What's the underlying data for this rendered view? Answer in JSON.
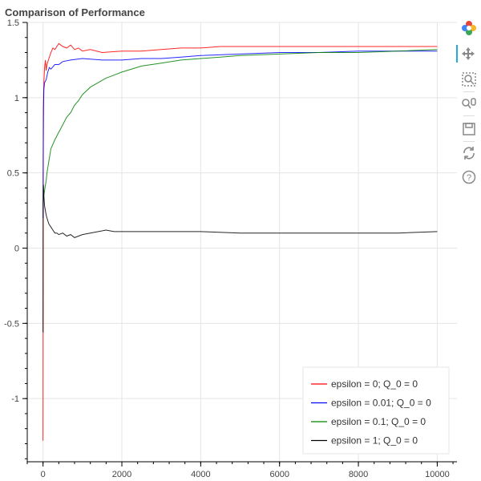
{
  "title": "Comparison of Performance",
  "toolbar": {
    "tools": [
      {
        "name": "bokeh-logo-icon",
        "interactable": false
      },
      {
        "name": "pan-icon",
        "interactable": true,
        "active": true
      },
      {
        "name": "box-zoom-icon",
        "interactable": true
      },
      {
        "name": "wheel-zoom-icon",
        "interactable": true
      },
      {
        "name": "save-icon",
        "interactable": true
      },
      {
        "name": "reset-icon",
        "interactable": true
      },
      {
        "name": "help-icon",
        "interactable": true
      }
    ]
  },
  "chart_data": {
    "type": "line",
    "title": "Comparison of Performance",
    "xlabel": "",
    "ylabel": "",
    "xlim": [
      -400,
      10500
    ],
    "ylim": [
      -1.42,
      1.5
    ],
    "x_ticks": [
      0,
      2000,
      4000,
      6000,
      8000,
      10000
    ],
    "y_ticks": [
      -1,
      -0.5,
      0,
      0.5,
      1,
      1.5
    ],
    "y_tick_labels": [
      "-1",
      "-0.5",
      "0",
      "0.5",
      "1",
      "1.5"
    ],
    "grid": true,
    "legend_position": "bottom-right",
    "series": [
      {
        "name": "epsilon = 0; Q_0 = 0",
        "color": "#ff0000",
        "points": [
          [
            1,
            -1.28
          ],
          [
            3,
            -0.6
          ],
          [
            5,
            0.4
          ],
          [
            10,
            0.95
          ],
          [
            20,
            1.1
          ],
          [
            40,
            1.2
          ],
          [
            60,
            1.25
          ],
          [
            80,
            1.18
          ],
          [
            100,
            1.22
          ],
          [
            150,
            1.26
          ],
          [
            200,
            1.3
          ],
          [
            250,
            1.33
          ],
          [
            300,
            1.32
          ],
          [
            350,
            1.34
          ],
          [
            400,
            1.36
          ],
          [
            450,
            1.35
          ],
          [
            500,
            1.34
          ],
          [
            600,
            1.33
          ],
          [
            700,
            1.35
          ],
          [
            800,
            1.32
          ],
          [
            900,
            1.33
          ],
          [
            1000,
            1.31
          ],
          [
            1200,
            1.32
          ],
          [
            1500,
            1.3
          ],
          [
            2000,
            1.31
          ],
          [
            2500,
            1.31
          ],
          [
            3000,
            1.32
          ],
          [
            3500,
            1.33
          ],
          [
            4000,
            1.33
          ],
          [
            4500,
            1.34
          ],
          [
            5000,
            1.34
          ],
          [
            6000,
            1.34
          ],
          [
            7000,
            1.34
          ],
          [
            8000,
            1.34
          ],
          [
            9000,
            1.34
          ],
          [
            10000,
            1.34
          ]
        ]
      },
      {
        "name": "epsilon = 0.01; Q_0 = 0",
        "color": "#0000ff",
        "points": [
          [
            1,
            0.2
          ],
          [
            5,
            0.6
          ],
          [
            10,
            0.9
          ],
          [
            20,
            1.05
          ],
          [
            40,
            1.1
          ],
          [
            80,
            1.12
          ],
          [
            120,
            1.17
          ],
          [
            160,
            1.2
          ],
          [
            200,
            1.19
          ],
          [
            300,
            1.22
          ],
          [
            400,
            1.22
          ],
          [
            500,
            1.24
          ],
          [
            700,
            1.25
          ],
          [
            1000,
            1.26
          ],
          [
            1500,
            1.25
          ],
          [
            2000,
            1.25
          ],
          [
            2500,
            1.26
          ],
          [
            3000,
            1.26
          ],
          [
            3500,
            1.27
          ],
          [
            4000,
            1.28
          ],
          [
            5000,
            1.29
          ],
          [
            6000,
            1.3
          ],
          [
            7000,
            1.3
          ],
          [
            8000,
            1.31
          ],
          [
            9000,
            1.31
          ],
          [
            10000,
            1.31
          ]
        ]
      },
      {
        "name": "epsilon = 0.1; Q_0 = 0",
        "color": "#008000",
        "points": [
          [
            1,
            0.3
          ],
          [
            20,
            0.35
          ],
          [
            50,
            0.4
          ],
          [
            80,
            0.45
          ],
          [
            100,
            0.5
          ],
          [
            150,
            0.58
          ],
          [
            200,
            0.66
          ],
          [
            300,
            0.72
          ],
          [
            400,
            0.77
          ],
          [
            500,
            0.82
          ],
          [
            600,
            0.87
          ],
          [
            700,
            0.9
          ],
          [
            800,
            0.95
          ],
          [
            900,
            0.98
          ],
          [
            1000,
            1.02
          ],
          [
            1200,
            1.07
          ],
          [
            1400,
            1.1
          ],
          [
            1600,
            1.13
          ],
          [
            1800,
            1.15
          ],
          [
            2000,
            1.17
          ],
          [
            2500,
            1.21
          ],
          [
            3000,
            1.23
          ],
          [
            3500,
            1.25
          ],
          [
            4000,
            1.26
          ],
          [
            4500,
            1.27
          ],
          [
            5000,
            1.28
          ],
          [
            6000,
            1.29
          ],
          [
            7000,
            1.3
          ],
          [
            8000,
            1.3
          ],
          [
            9000,
            1.31
          ],
          [
            10000,
            1.32
          ]
        ]
      },
      {
        "name": "epsilon = 1; Q_0 = 0",
        "color": "#000000",
        "points": [
          [
            1,
            -0.56
          ],
          [
            3,
            0.1
          ],
          [
            5,
            0.3
          ],
          [
            10,
            0.42
          ],
          [
            20,
            0.35
          ],
          [
            40,
            0.28
          ],
          [
            60,
            0.25
          ],
          [
            80,
            0.22
          ],
          [
            100,
            0.2
          ],
          [
            150,
            0.16
          ],
          [
            200,
            0.14
          ],
          [
            250,
            0.12
          ],
          [
            300,
            0.1
          ],
          [
            350,
            0.1
          ],
          [
            400,
            0.09
          ],
          [
            500,
            0.1
          ],
          [
            600,
            0.08
          ],
          [
            700,
            0.09
          ],
          [
            800,
            0.07
          ],
          [
            900,
            0.08
          ],
          [
            1000,
            0.09
          ],
          [
            1200,
            0.1
          ],
          [
            1400,
            0.11
          ],
          [
            1600,
            0.12
          ],
          [
            1800,
            0.11
          ],
          [
            2000,
            0.11
          ],
          [
            2500,
            0.11
          ],
          [
            3000,
            0.11
          ],
          [
            3500,
            0.11
          ],
          [
            4000,
            0.11
          ],
          [
            5000,
            0.1
          ],
          [
            6000,
            0.1
          ],
          [
            7000,
            0.1
          ],
          [
            8000,
            0.1
          ],
          [
            9000,
            0.1
          ],
          [
            10000,
            0.11
          ]
        ]
      }
    ]
  }
}
